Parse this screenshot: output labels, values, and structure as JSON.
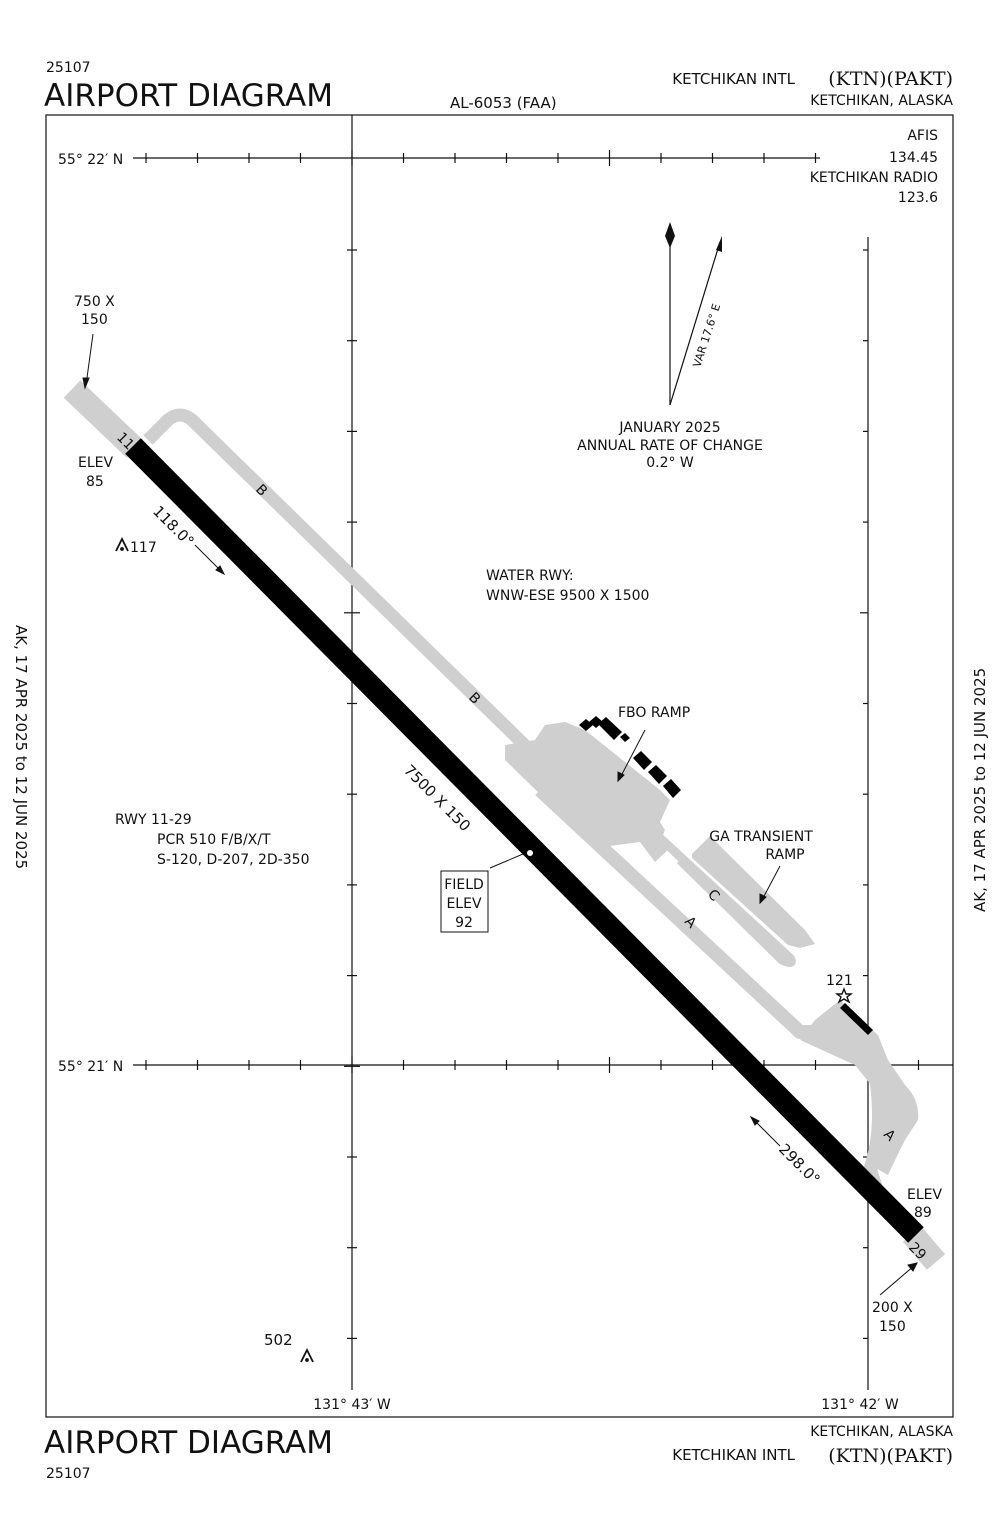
{
  "header": {
    "chart_number": "25107",
    "title": "AIRPORT DIAGRAM",
    "procedure_id": "AL-6053 (FAA)",
    "airport_name": "KETCHIKAN INTL",
    "airport_ids": "(KTN)(PAKT)",
    "city_state": "KETCHIKAN, ALASKA"
  },
  "footer": {
    "chart_number": "25107",
    "title": "AIRPORT DIAGRAM",
    "city_state": "KETCHIKAN, ALASKA",
    "airport_name": "KETCHIKAN INTL",
    "airport_ids": "(KTN)(PAKT)"
  },
  "side_note": "AK,  17 APR 2025  to  12 JUN 2025",
  "frequencies": {
    "afis_label": "AFIS",
    "afis_freq": "134.45",
    "radio_label": "KETCHIKAN RADIO",
    "radio_freq": "123.6"
  },
  "grid": {
    "lat_north": "55° 22′ N",
    "lat_south": "55° 21′ N",
    "lon_west": "131° 43′ W",
    "lon_east": "131° 42′ W"
  },
  "magnetic": {
    "variation": "VAR 17.6° E",
    "date": "JANUARY 2025",
    "rate_label": "ANNUAL RATE OF CHANGE",
    "rate": "0.2° W"
  },
  "water_runway": {
    "label": "WATER RWY:",
    "detail": "WNW-ESE 9500 X 1500"
  },
  "runway": {
    "end_11": "11",
    "end_29": "29",
    "dimensions": "7500 X 150",
    "heading_11": "118.0°",
    "heading_29": "298.0°",
    "elev_label": "ELEV",
    "elev_11": "85",
    "elev_29": "89",
    "overrun_11_line1": "750 X",
    "overrun_11_line2": "150",
    "overrun_29_line1": "200 X",
    "overrun_29_line2": "150",
    "info_title": "RWY  11-29",
    "info_pcr": "PCR 510 F/B/X/T",
    "info_weights": "S-120, D-207, 2D-350"
  },
  "field_elev": {
    "line1": "FIELD",
    "line2": "ELEV",
    "value": "92"
  },
  "taxiways": {
    "b1": "B",
    "b2": "B",
    "a1": "A",
    "a2": "A",
    "c": "C"
  },
  "ramps": {
    "fbo": "FBO RAMP",
    "ga_line1": "GA TRANSIENT",
    "ga_line2": "RAMP"
  },
  "obstacles": {
    "obs1": "117",
    "obs2": "502",
    "beacon": "121"
  },
  "colors": {
    "runway": "#000000",
    "taxiway": "#cfcfcf",
    "ink": "#111111"
  }
}
